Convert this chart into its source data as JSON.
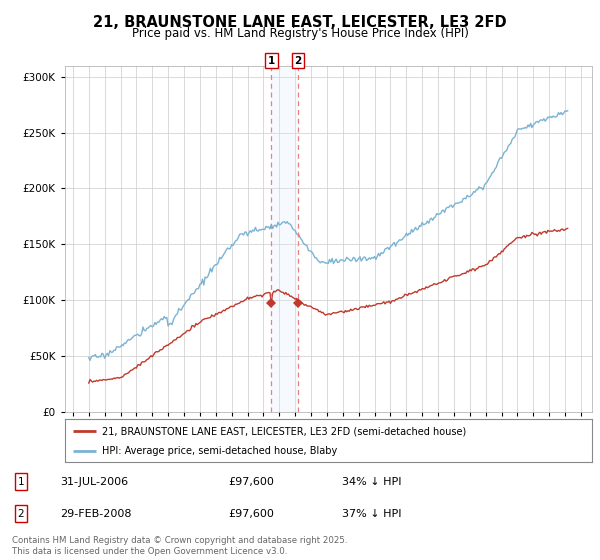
{
  "title": "21, BRAUNSTONE LANE EAST, LEICESTER, LE3 2FD",
  "subtitle": "Price paid vs. HM Land Registry's House Price Index (HPI)",
  "title_fontsize": 10.5,
  "subtitle_fontsize": 8.5,
  "ylim": [
    0,
    310000
  ],
  "yticks": [
    0,
    50000,
    100000,
    150000,
    200000,
    250000,
    300000
  ],
  "ytick_labels": [
    "£0",
    "£50K",
    "£100K",
    "£150K",
    "£200K",
    "£250K",
    "£300K"
  ],
  "hpi_color": "#7ab3d4",
  "price_color": "#c0392b",
  "vline_color": "#e88080",
  "shading_color": "#ddeeff",
  "purchase1_date": "31-JUL-2006",
  "purchase1_price": 97600,
  "purchase1_hpi_diff": "34% ↓ HPI",
  "purchase2_date": "29-FEB-2008",
  "purchase2_price": 97600,
  "purchase2_hpi_diff": "37% ↓ HPI",
  "legend_line1": "21, BRAUNSTONE LANE EAST, LEICESTER, LE3 2FD (semi-detached house)",
  "legend_line2": "HPI: Average price, semi-detached house, Blaby",
  "footer": "Contains HM Land Registry data © Crown copyright and database right 2025.\nThis data is licensed under the Open Government Licence v3.0.",
  "background_color": "#ffffff",
  "grid_color": "#cccccc",
  "marker_box_color": "#cc0000"
}
